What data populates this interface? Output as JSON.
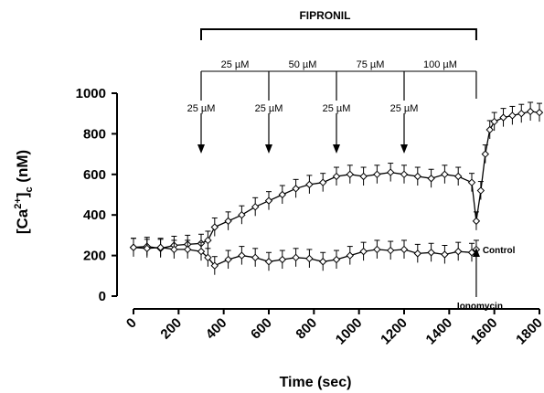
{
  "chart_data": {
    "type": "line",
    "xlabel": "Time (sec)",
    "ylabel": {
      "open": "[Ca",
      "sup": "2+",
      "close": "]",
      "sub": "c",
      "unit": " (nM)"
    },
    "xlim": [
      0,
      1800
    ],
    "ylim": [
      0,
      1000
    ],
    "xticks": [
      "0",
      "200",
      "400",
      "600",
      "800",
      "1000",
      "1200",
      "1400",
      "1600",
      "1800"
    ],
    "yticks": [
      "0",
      "200",
      "400",
      "600",
      "800",
      "1000"
    ],
    "grid": false,
    "series": [
      {
        "name": "",
        "marker": "diamond",
        "x": [
          0,
          60,
          120,
          180,
          240,
          300,
          330,
          360,
          420,
          480,
          540,
          600,
          660,
          720,
          780,
          840,
          900,
          960,
          1020,
          1080,
          1140,
          1200,
          1260,
          1320,
          1380,
          1440,
          1500,
          1520,
          1540,
          1560,
          1580,
          1600,
          1640,
          1680,
          1720,
          1760,
          1800
        ],
        "y": [
          240,
          245,
          235,
          250,
          255,
          260,
          275,
          340,
          370,
          400,
          440,
          470,
          500,
          530,
          550,
          560,
          590,
          600,
          590,
          600,
          610,
          600,
          590,
          580,
          600,
          590,
          560,
          370,
          520,
          700,
          820,
          860,
          880,
          890,
          900,
          910,
          905
        ]
      },
      {
        "name": "Control",
        "marker": "diamond",
        "x": [
          0,
          60,
          120,
          180,
          240,
          300,
          330,
          360,
          420,
          480,
          540,
          600,
          660,
          720,
          780,
          840,
          900,
          960,
          1020,
          1080,
          1140,
          1200,
          1260,
          1320,
          1380,
          1440,
          1500,
          1520
        ],
        "y": [
          240,
          235,
          240,
          230,
          230,
          220,
          190,
          150,
          180,
          200,
          190,
          170,
          180,
          190,
          185,
          170,
          180,
          200,
          220,
          230,
          225,
          230,
          210,
          215,
          205,
          220,
          215,
          230
        ]
      }
    ],
    "bracket": {
      "label": "FIPRONIL",
      "x_start": 300,
      "x_end": 1520
    },
    "concentration_segments": [
      {
        "label": "25 µM",
        "x_start": 300,
        "x_end": 600
      },
      {
        "label": "50 µM",
        "x_start": 600,
        "x_end": 900
      },
      {
        "label": "75 µM",
        "x_start": 900,
        "x_end": 1200
      },
      {
        "label": "100 µM",
        "x_start": 1200,
        "x_end": 1520
      }
    ],
    "arrows": [
      {
        "label": "25 µM",
        "x": 300
      },
      {
        "label": "25 µM",
        "x": 600
      },
      {
        "label": "25 µM",
        "x": 900
      },
      {
        "label": "25 µM",
        "x": 1200
      }
    ],
    "annotations": [
      {
        "label": "Ionomycin",
        "x": 1520,
        "direction": "up"
      },
      {
        "label": "Control",
        "x": 1620,
        "y": 230
      }
    ]
  }
}
